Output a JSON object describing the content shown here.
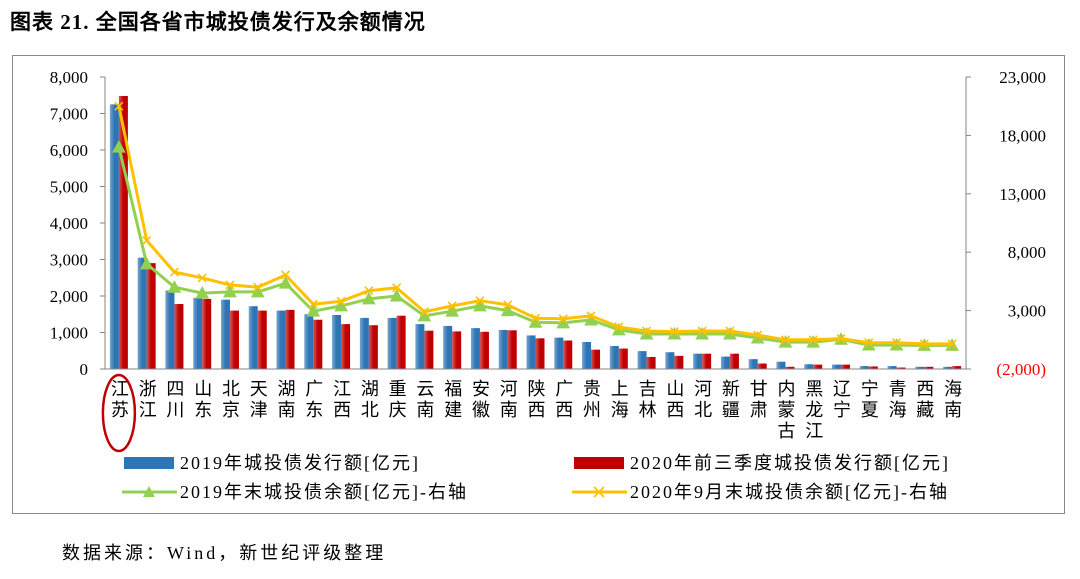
{
  "source": "数据来源：Wind，新世纪评级整理",
  "chart_data": {
    "type": "bar",
    "title": "图表 21. 全国各省市城投债发行及余额情况",
    "categories": [
      "江苏",
      "浙江",
      "四川",
      "山东",
      "北京",
      "天津",
      "湖南",
      "广东",
      "江西",
      "湖北",
      "重庆",
      "云南",
      "福建",
      "安徽",
      "河南",
      "陕西",
      "广西",
      "贵州",
      "上海",
      "吉林",
      "山西",
      "河北",
      "新疆",
      "甘肃",
      "内蒙古",
      "黑龙江",
      "辽宁",
      "宁夏",
      "青海",
      "西藏",
      "海南"
    ],
    "series": [
      {
        "name": "2019年城投债发行额[亿元]",
        "type": "bar",
        "axis": "left",
        "color": "#2e75b6",
        "values": [
          7250,
          3050,
          2150,
          1950,
          1900,
          1720,
          1600,
          1500,
          1480,
          1400,
          1400,
          1230,
          1180,
          1120,
          1070,
          920,
          860,
          740,
          630,
          490,
          460,
          420,
          340,
          270,
          200,
          130,
          120,
          80,
          80,
          60,
          60
        ]
      },
      {
        "name": "2020年前三季度城投债发行额[亿元]",
        "type": "bar",
        "axis": "left",
        "color": "#c00000",
        "values": [
          7480,
          2900,
          1780,
          1920,
          1600,
          1600,
          1620,
          1350,
          1230,
          1200,
          1460,
          1050,
          1030,
          1020,
          1060,
          840,
          780,
          530,
          560,
          330,
          360,
          420,
          420,
          150,
          60,
          120,
          120,
          70,
          40,
          60,
          80
        ]
      },
      {
        "name": "2019年末城投债余额[亿元]-右轴",
        "type": "line",
        "axis": "right",
        "marker": "triangle",
        "color": "#92d050",
        "values": [
          17000,
          7000,
          5000,
          4500,
          4600,
          4600,
          5350,
          2950,
          3400,
          4000,
          4250,
          2550,
          2950,
          3400,
          3000,
          2000,
          1950,
          2200,
          1350,
          1000,
          1000,
          1000,
          1000,
          650,
          300,
          300,
          550,
          50,
          50,
          20,
          20
        ]
      },
      {
        "name": "2020年9月末城投债余额[亿元]-右轴",
        "type": "line",
        "axis": "right",
        "marker": "x",
        "color": "#ffc000",
        "values": [
          20500,
          9000,
          6300,
          5800,
          5200,
          5000,
          6050,
          3550,
          3800,
          4700,
          4950,
          2900,
          3400,
          3850,
          3500,
          2350,
          2300,
          2550,
          1600,
          1250,
          1200,
          1250,
          1250,
          900,
          500,
          500,
          600,
          250,
          250,
          150,
          150
        ]
      }
    ],
    "y_left": {
      "min": 0,
      "max": 8000,
      "ticks": [
        0,
        1000,
        2000,
        3000,
        4000,
        5000,
        6000,
        7000,
        8000
      ],
      "tick_labels": [
        "0",
        "1,000",
        "2,000",
        "3,000",
        "4,000",
        "5,000",
        "6,000",
        "7,000",
        "8,000"
      ]
    },
    "y_right": {
      "min": -2000,
      "max": 23000,
      "ticks": [
        -2000,
        3000,
        8000,
        13000,
        18000,
        23000
      ],
      "tick_labels": [
        "(2,000)",
        "3,000",
        "8,000",
        "13,000",
        "18,000",
        "23,000"
      ],
      "negative_tick_color": "#ff0000"
    },
    "grid": false,
    "legend_position": "bottom",
    "highlight": {
      "category_index": 0,
      "color": "#c00000"
    }
  }
}
